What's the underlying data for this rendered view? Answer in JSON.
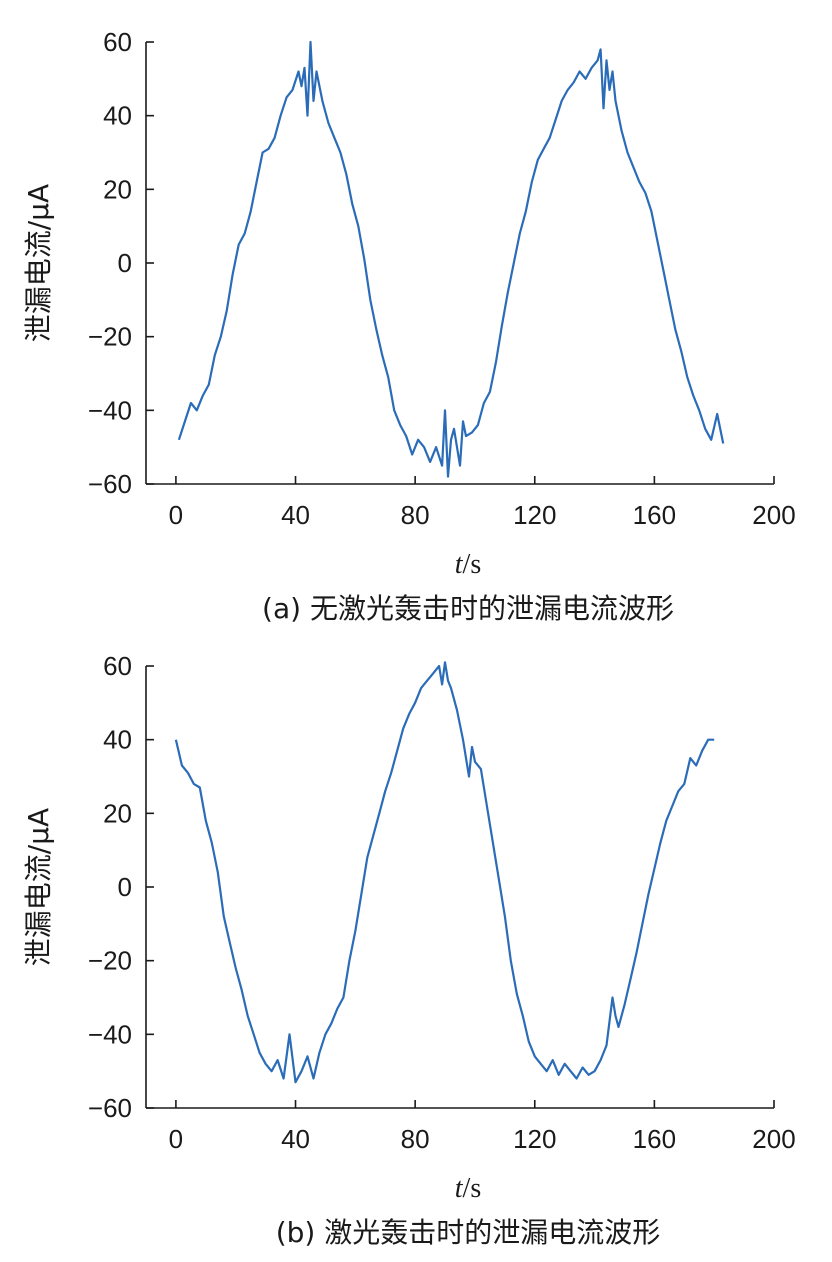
{
  "chart_data": [
    {
      "type": "line",
      "caption": "(a)  无激光轰击时的泄漏电流波形",
      "ylabel": "泄漏电流/μA",
      "xlabel_italic": "t",
      "xlabel_unit": "/s",
      "xlim": [
        -10,
        200
      ],
      "ylim": [
        -60,
        60
      ],
      "xticks": [
        0,
        40,
        80,
        120,
        160,
        200
      ],
      "yticks": [
        -60,
        -40,
        -20,
        0,
        20,
        40,
        60
      ],
      "color": "#2b6cb8",
      "x": [
        1,
        3,
        5,
        7,
        9,
        11,
        13,
        15,
        17,
        19,
        21,
        23,
        25,
        27,
        29,
        31,
        33,
        35,
        37,
        39,
        41,
        42,
        43,
        44,
        45,
        46,
        47,
        49,
        51,
        53,
        55,
        57,
        59,
        61,
        63,
        65,
        67,
        69,
        71,
        73,
        75,
        77,
        79,
        81,
        83,
        85,
        87,
        89,
        90,
        91,
        92,
        93,
        94,
        95,
        96,
        97,
        99,
        101,
        103,
        105,
        107,
        109,
        111,
        113,
        115,
        117,
        119,
        121,
        123,
        125,
        127,
        129,
        131,
        133,
        135,
        137,
        139,
        141,
        142,
        143,
        144,
        145,
        146,
        147,
        149,
        151,
        153,
        155,
        157,
        159,
        161,
        163,
        165,
        167,
        169,
        171,
        173,
        175,
        177,
        179,
        181,
        183
      ],
      "y": [
        -48,
        -43,
        -38,
        -40,
        -36,
        -33,
        -25,
        -20,
        -13,
        -3,
        5,
        8,
        14,
        22,
        30,
        31,
        34,
        40,
        45,
        47,
        52,
        48,
        53,
        40,
        60,
        44,
        52,
        44,
        38,
        34,
        30,
        24,
        16,
        10,
        1,
        -10,
        -18,
        -25,
        -31,
        -40,
        -44,
        -47,
        -52,
        -48,
        -50,
        -54,
        -50,
        -55,
        -40,
        -58,
        -48,
        -45,
        -50,
        -55,
        -43,
        -47,
        -46,
        -44,
        -38,
        -35,
        -27,
        -17,
        -8,
        0,
        8,
        14,
        22,
        28,
        31,
        34,
        39,
        44,
        47,
        49,
        52,
        50,
        53,
        55,
        58,
        42,
        55,
        47,
        52,
        44,
        36,
        30,
        26,
        22,
        19,
        14,
        6,
        -2,
        -10,
        -18,
        -24,
        -31,
        -36,
        -40,
        -45,
        -48,
        -41,
        -49
      ]
    },
    {
      "type": "line",
      "caption": "(b)  激光轰击时的泄漏电流波形",
      "ylabel": "泄漏电流/μA",
      "xlabel_italic": "t",
      "xlabel_unit": "/s",
      "xlim": [
        -10,
        200
      ],
      "ylim": [
        -60,
        60
      ],
      "xticks": [
        0,
        40,
        80,
        120,
        160,
        200
      ],
      "yticks": [
        -60,
        -40,
        -20,
        0,
        20,
        40,
        60
      ],
      "color": "#2b6cb8",
      "x": [
        0,
        2,
        4,
        6,
        8,
        10,
        12,
        14,
        16,
        18,
        20,
        22,
        24,
        26,
        28,
        30,
        32,
        34,
        36,
        38,
        40,
        42,
        44,
        46,
        48,
        50,
        52,
        54,
        56,
        58,
        60,
        62,
        64,
        66,
        68,
        70,
        72,
        74,
        76,
        78,
        80,
        82,
        84,
        86,
        88,
        89,
        90,
        91,
        92,
        94,
        96,
        98,
        99,
        100,
        102,
        104,
        106,
        108,
        110,
        112,
        114,
        116,
        118,
        120,
        122,
        124,
        126,
        128,
        130,
        132,
        134,
        136,
        138,
        140,
        142,
        144,
        146,
        147,
        148,
        150,
        152,
        154,
        156,
        158,
        160,
        162,
        164,
        166,
        168,
        170,
        172,
        174,
        176,
        178,
        180
      ],
      "y": [
        40,
        33,
        31,
        28,
        27,
        18,
        12,
        4,
        -8,
        -15,
        -22,
        -28,
        -35,
        -40,
        -45,
        -48,
        -50,
        -47,
        -52,
        -40,
        -53,
        -50,
        -46,
        -52,
        -45,
        -40,
        -37,
        -33,
        -30,
        -20,
        -12,
        -2,
        8,
        14,
        20,
        26,
        31,
        37,
        43,
        47,
        50,
        54,
        56,
        58,
        60,
        55,
        61,
        56,
        54,
        48,
        40,
        30,
        38,
        34,
        32,
        22,
        12,
        2,
        -8,
        -20,
        -29,
        -35,
        -42,
        -46,
        -48,
        -50,
        -47,
        -51,
        -48,
        -50,
        -52,
        -49,
        -51,
        -50,
        -47,
        -43,
        -30,
        -35,
        -38,
        -32,
        -25,
        -18,
        -10,
        -2,
        5,
        12,
        18,
        22,
        26,
        28,
        35,
        33,
        37,
        40,
        40
      ]
    }
  ]
}
